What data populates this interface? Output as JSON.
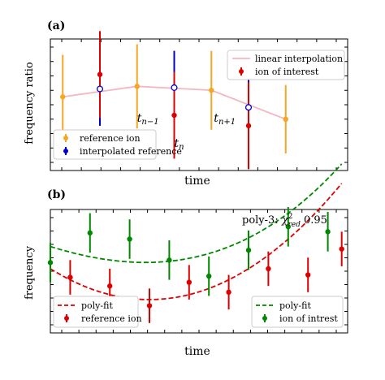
{
  "chart_data": [
    {
      "panel_label": "(a)",
      "type": "scatter",
      "xlabel": "time",
      "ylabel": "frequency ratio",
      "xlim": [
        0,
        12
      ],
      "ylim": [
        0,
        10
      ],
      "legend": [
        {
          "label": "reference ion",
          "color": "#f5a623",
          "placement": "bottom-left"
        },
        {
          "label": "interpolated reference",
          "color": "#0000cc",
          "placement": "bottom-left"
        },
        {
          "label": "linear interpolation",
          "color": "#f4b6c2",
          "placement": "top-right"
        },
        {
          "label": "ion of interest",
          "color": "#dd0000",
          "placement": "top-right"
        }
      ],
      "series": [
        {
          "name": "reference ion",
          "color": "#f5a623",
          "x": [
            0.5,
            3.5,
            6.5,
            9.5
          ],
          "y": [
            5.6,
            6.4,
            6.1,
            3.9
          ],
          "err": [
            3.2,
            3.2,
            3.0,
            2.6
          ]
        },
        {
          "name": "interpolated reference",
          "color": "#0000cc",
          "x": [
            2.0,
            5.0,
            8.0
          ],
          "y": [
            6.2,
            6.3,
            4.8
          ],
          "err": [
            2.8,
            2.8,
            2.8
          ]
        },
        {
          "name": "ion of interest",
          "color": "#dd0000",
          "x": [
            2.0,
            5.0,
            8.0
          ],
          "y": [
            7.3,
            4.2,
            3.4
          ],
          "err": [
            3.3,
            3.3,
            3.3
          ]
        },
        {
          "name": "linear interpolation",
          "color": "#f4b6c2",
          "x": [
            0.5,
            3.5,
            6.5,
            9.5
          ],
          "y": [
            5.6,
            6.4,
            6.1,
            3.9
          ]
        }
      ],
      "annotations": [
        {
          "text": "t",
          "sub": "n−1",
          "x": 3.5,
          "y": 3.7
        },
        {
          "text": "t",
          "sub": "n",
          "x": 5.0,
          "y": 1.8
        },
        {
          "text": "t",
          "sub": "n+1",
          "x": 6.6,
          "y": 3.7
        }
      ]
    },
    {
      "panel_label": "(b)",
      "type": "scatter",
      "xlabel": "time",
      "ylabel": "frequency",
      "xlim": [
        0,
        15
      ],
      "ylim": [
        0,
        10
      ],
      "annotation": {
        "prefix": "poly-3: ",
        "chi": "χ",
        "sup": "2",
        "sub": "red",
        "suffix": " 0.95"
      },
      "legend": [
        {
          "label": "poly-fit",
          "color": "#dd0000",
          "style": "dashed",
          "placement": "bottom-left"
        },
        {
          "label": "reference ion",
          "color": "#dd0000",
          "placement": "bottom-left"
        },
        {
          "label": "poly-fit",
          "color": "#008800",
          "style": "dashed",
          "placement": "bottom-right"
        },
        {
          "label": "ion of intrest",
          "color": "#008800",
          "placement": "bottom-right"
        }
      ],
      "series": [
        {
          "name": "reference ion",
          "color": "#dd0000",
          "x": [
            1.0,
            3.0,
            5.0,
            7.0,
            9.0,
            11.0,
            13.0,
            14.7
          ],
          "y": [
            4.5,
            3.8,
            2.2,
            4.1,
            3.3,
            5.2,
            4.7,
            6.8
          ],
          "err": [
            1.4,
            1.4,
            1.4,
            1.4,
            1.4,
            1.4,
            1.4,
            1.4
          ]
        },
        {
          "name": "ion of intrest",
          "color": "#008800",
          "x": [
            0.0,
            2.0,
            4.0,
            6.0,
            8.0,
            10.0,
            12.0,
            14.0
          ],
          "y": [
            5.7,
            8.1,
            7.6,
            5.9,
            4.6,
            6.7,
            8.6,
            8.2
          ],
          "err": [
            1.6,
            1.6,
            1.6,
            1.6,
            1.6,
            1.6,
            1.6,
            1.6
          ]
        }
      ],
      "fits": [
        {
          "name": "poly-fit reference",
          "color": "#dd0000",
          "coef": [
            5.2,
            -1.0,
            0.1,
            0.0
          ]
        },
        {
          "name": "poly-fit interest",
          "color": "#008800",
          "coef": [
            7.0,
            -0.5,
            0.04,
            0.0017
          ]
        }
      ]
    }
  ]
}
